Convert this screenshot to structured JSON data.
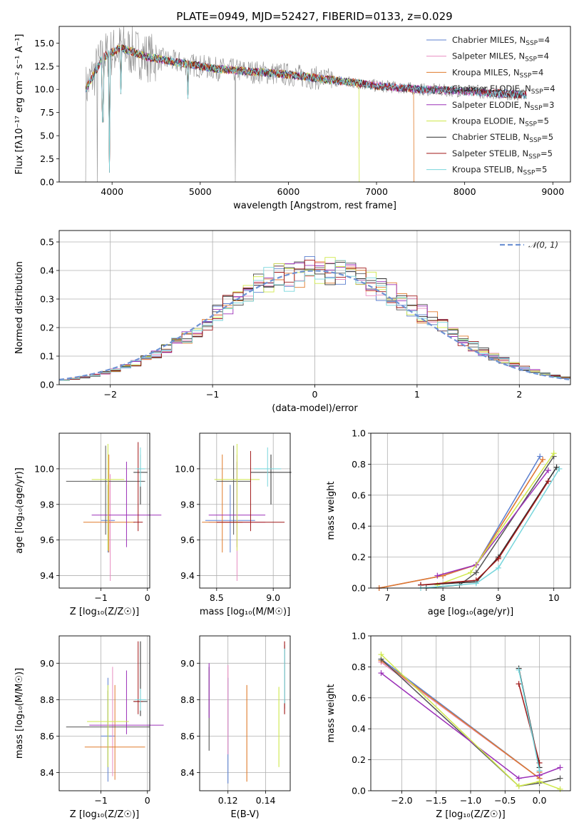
{
  "palette": [
    "#5b7fcf",
    "#e88cc0",
    "#e07b2c",
    "#555555",
    "#9b30b8",
    "#cfe84a",
    "#2f2f2f",
    "#a01818",
    "#78d6dc"
  ],
  "chart_data": [
    {
      "id": "spectrum",
      "type": "line",
      "title": "PLATE=0949, MJD=52427, FIBERID=0133, z=0.029",
      "xlabel": "wavelength [Angstrom, rest frame]",
      "ylabel": "Flux [fλ10⁻¹⁷ erg cm⁻² s⁻¹ A⁻¹]",
      "xlim": [
        3400,
        9200
      ],
      "ylim": [
        0,
        16.8
      ],
      "xticks": [
        4000,
        5000,
        6000,
        7000,
        8000,
        9000
      ],
      "yticks": [
        0.0,
        2.5,
        5.0,
        7.5,
        10.0,
        12.5,
        15.0
      ],
      "ytick_labels": [
        "0.0",
        "2.5",
        "5.0",
        "7.5",
        "10.0",
        "12.5",
        "15.0"
      ],
      "grid": false,
      "legend": "top-right",
      "legend_entries": [
        {
          "label": "Chabrier MILES, N",
          "sub": "SSP",
          "tail": "=4"
        },
        {
          "label": "Salpeter MILES, N",
          "sub": "SSP",
          "tail": "=4"
        },
        {
          "label": "Kroupa MILES, N",
          "sub": "SSP",
          "tail": "=4"
        },
        {
          "label": "Chabrier ELODIE, N",
          "sub": "SSP",
          "tail": "=4"
        },
        {
          "label": "Salpeter ELODIE, N",
          "sub": "SSP",
          "tail": "=3"
        },
        {
          "label": "Kroupa ELODIE, N",
          "sub": "SSP",
          "tail": "=5"
        },
        {
          "label": "Chabrier STELIB, N",
          "sub": "SSP",
          "tail": "=5"
        },
        {
          "label": "Salpeter STELIB, N",
          "sub": "SSP",
          "tail": "=5"
        },
        {
          "label": "Kroupa STELIB, N",
          "sub": "SSP",
          "tail": "=5"
        }
      ],
      "continuum": {
        "x": [
          3700,
          3900,
          4100,
          4400,
          4800,
          5200,
          5600,
          6000,
          6500,
          7000,
          7500,
          8000,
          8500,
          9000
        ],
        "y": [
          10.0,
          13.5,
          14.5,
          13.5,
          12.8,
          12.2,
          11.9,
          11.6,
          11.0,
          10.4,
          10.0,
          9.8,
          9.5,
          9.3
        ]
      }
    },
    {
      "id": "residuals",
      "type": "bar",
      "xlabel": "(data-model)/error",
      "ylabel": "Normed distribution",
      "xlim": [
        -2.5,
        2.5
      ],
      "ylim": [
        0,
        0.54
      ],
      "xticks": [
        -2,
        -1,
        0,
        1,
        2
      ],
      "xtick_labels": [
        "−2",
        "−1",
        "0",
        "1",
        "2"
      ],
      "yticks": [
        0.0,
        0.1,
        0.2,
        0.3,
        0.4,
        0.5
      ],
      "ytick_labels": [
        "0.0",
        "0.1",
        "0.2",
        "0.3",
        "0.4",
        "0.5"
      ],
      "grid": true,
      "legend": "top-right",
      "normal_label": "𝒩(0, 1)"
    },
    {
      "id": "age-vs-Z",
      "type": "scatter",
      "xlabel": "Z [log₁₀(Z/Z☉)]",
      "ylabel": "age  [log₁₀(age/yr)]",
      "xlim": [
        -1.9,
        0.05
      ],
      "ylim": [
        9.33,
        10.2
      ],
      "xticks": [
        -1,
        0
      ],
      "xtick_labels": [
        "−1",
        "0"
      ],
      "yticks": [
        9.4,
        9.6,
        9.8,
        10.0
      ],
      "ytick_labels": [
        "9.4",
        "9.6",
        "9.8",
        "10.0"
      ],
      "grid": true,
      "points": [
        {
          "x": -0.85,
          "y": 9.71,
          "xerr": 0.15,
          "yerr": [
            0.18,
            0.2
          ]
        },
        {
          "x": -0.8,
          "y": 9.7,
          "xerr": 0.08,
          "yerr": [
            0.33,
            0.27
          ]
        },
        {
          "x": -0.83,
          "y": 9.7,
          "xerr": 0.55,
          "yerr": [
            0.17,
            0.38
          ]
        },
        {
          "x": -0.9,
          "y": 9.93,
          "xerr": 0.85,
          "yerr": [
            0.3,
            0.2
          ]
        },
        {
          "x": -0.45,
          "y": 9.74,
          "xerr": 0.75,
          "yerr": [
            0.18,
            0.3
          ]
        },
        {
          "x": -0.85,
          "y": 9.94,
          "xerr": 0.35,
          "yerr": [
            0.4,
            0.2
          ]
        },
        {
          "x": -0.15,
          "y": 9.98,
          "xerr": 0.15,
          "yerr": [
            0.18,
            0.1
          ]
        },
        {
          "x": -0.2,
          "y": 9.7,
          "xerr": 0.1,
          "yerr": [
            0.05,
            0.45
          ]
        },
        {
          "x": -0.15,
          "y": 10.0,
          "xerr": 0.1,
          "yerr": [
            0.1,
            0.12
          ]
        }
      ]
    },
    {
      "id": "age-vs-mass",
      "type": "scatter",
      "xlabel": "mass [log₁₀(M/M☉)]",
      "ylabel": "",
      "xlim": [
        8.35,
        9.15
      ],
      "ylim": [
        9.33,
        10.2
      ],
      "xticks": [
        8.5,
        9.0
      ],
      "xtick_labels": [
        "8.5",
        "9.0"
      ],
      "yticks": [
        9.4,
        9.6,
        9.8,
        10.0
      ],
      "ytick_labels": [
        "9.4",
        "9.6",
        "9.8",
        "10.0"
      ],
      "grid": true,
      "points": [
        {
          "x": 8.62,
          "y": 9.71,
          "xerr": 0.22,
          "yerr": [
            0.18,
            0.2
          ]
        },
        {
          "x": 8.68,
          "y": 9.7,
          "xerr": 0.25,
          "yerr": [
            0.33,
            0.38
          ]
        },
        {
          "x": 8.55,
          "y": 9.7,
          "xerr": 0.18,
          "yerr": [
            0.17,
            0.38
          ]
        },
        {
          "x": 8.65,
          "y": 9.93,
          "xerr": 0.15,
          "yerr": [
            0.3,
            0.2
          ]
        },
        {
          "x": 8.68,
          "y": 9.74,
          "xerr": 0.25,
          "yerr": [
            0.18,
            0.3
          ]
        },
        {
          "x": 8.68,
          "y": 9.94,
          "xerr": 0.2,
          "yerr": [
            0.4,
            0.2
          ]
        },
        {
          "x": 8.98,
          "y": 9.98,
          "xerr": 0.18,
          "yerr": [
            0.18,
            0.1
          ]
        },
        {
          "x": 8.8,
          "y": 9.7,
          "xerr": 0.3,
          "yerr": [
            0.05,
            0.4
          ]
        },
        {
          "x": 8.95,
          "y": 10.0,
          "xerr": 0.12,
          "yerr": [
            0.1,
            0.12
          ]
        }
      ]
    },
    {
      "id": "mass-weight-vs-age",
      "type": "line",
      "xlabel": "age  [log₁₀(age/yr)]",
      "ylabel": "mass weight",
      "xlim": [
        6.7,
        10.3
      ],
      "ylim": [
        0,
        1.0
      ],
      "xticks": [
        7,
        8,
        9,
        10
      ],
      "xtick_labels": [
        "7",
        "8",
        "9",
        "10"
      ],
      "yticks": [
        0.0,
        0.2,
        0.4,
        0.6,
        0.8,
        1.0
      ],
      "ytick_labels": [
        "0.0",
        "0.2",
        "0.4",
        "0.6",
        "0.8",
        "1.0"
      ],
      "grid": true,
      "series": [
        {
          "x": [
            6.85,
            8.0,
            8.6,
            9.75
          ],
          "y": [
            0.0,
            0.08,
            0.15,
            0.85
          ]
        },
        {
          "x": [
            6.85,
            8.0,
            8.6,
            9.8
          ],
          "y": [
            0.0,
            0.08,
            0.15,
            0.83
          ]
        },
        {
          "x": [
            6.85,
            8.0,
            8.6,
            9.8
          ],
          "y": [
            0.0,
            0.08,
            0.15,
            0.83
          ]
        },
        {
          "x": [
            7.7,
            8.3,
            8.6,
            10.0
          ],
          "y": [
            0.0,
            0.02,
            0.1,
            0.85
          ]
        },
        {
          "x": [
            7.9,
            8.6,
            9.9
          ],
          "y": [
            0.08,
            0.15,
            0.76
          ]
        },
        {
          "x": [
            7.9,
            8.5,
            10.0
          ],
          "y": [
            0.02,
            0.1,
            0.87
          ]
        },
        {
          "x": [
            7.6,
            8.6,
            9.0,
            10.05
          ],
          "y": [
            0.02,
            0.04,
            0.2,
            0.78
          ]
        },
        {
          "x": [
            7.6,
            8.6,
            9.0,
            9.9
          ],
          "y": [
            0.02,
            0.05,
            0.19,
            0.69
          ]
        },
        {
          "x": [
            7.6,
            8.6,
            9.0,
            10.1
          ],
          "y": [
            0.0,
            0.03,
            0.13,
            0.77
          ]
        }
      ]
    },
    {
      "id": "mass-vs-Z",
      "type": "scatter",
      "xlabel": "Z [log₁₀(Z/Z☉)]",
      "ylabel": "mass [log₁₀(M/M☉)]",
      "xlim": [
        -1.9,
        0.05
      ],
      "ylim": [
        8.3,
        9.15
      ],
      "xticks": [
        -1,
        0
      ],
      "xtick_labels": [
        "−1",
        "0"
      ],
      "yticks": [
        8.4,
        8.6,
        8.8,
        9.0
      ],
      "ytick_labels": [
        "8.4",
        "8.6",
        "8.8",
        "9.0"
      ],
      "grid": true,
      "points": [
        {
          "x": -0.85,
          "y": 8.6,
          "xerr": 0.15,
          "yerr": [
            0.25,
            0.32
          ]
        },
        {
          "x": -0.75,
          "y": 8.68,
          "xerr": 0.1,
          "yerr": [
            0.3,
            0.3
          ]
        },
        {
          "x": -0.7,
          "y": 8.54,
          "xerr": 0.65,
          "yerr": [
            0.18,
            0.34
          ]
        },
        {
          "x": -0.85,
          "y": 8.65,
          "xerr": 0.9,
          "yerr": [
            0.22,
            0.2
          ]
        },
        {
          "x": -0.45,
          "y": 8.66,
          "xerr": 0.8,
          "yerr": [
            0.05,
            0.3
          ]
        },
        {
          "x": -0.85,
          "y": 8.68,
          "xerr": 0.45,
          "yerr": [
            0.25,
            0.2
          ]
        },
        {
          "x": -0.15,
          "y": 8.79,
          "xerr": 0.15,
          "yerr": [
            0.08,
            0.33
          ]
        },
        {
          "x": -0.2,
          "y": 8.79,
          "xerr": 0.1,
          "yerr": [
            0.07,
            0.33
          ]
        },
        {
          "x": -0.15,
          "y": 8.8,
          "xerr": 0.12,
          "yerr": [
            0.06,
            0.06
          ]
        }
      ]
    },
    {
      "id": "mass-vs-EBV",
      "type": "scatter",
      "xlabel": "E(B-V)",
      "ylabel": "",
      "xlim": [
        0.105,
        0.153
      ],
      "ylim": [
        8.3,
        9.15
      ],
      "xticks": [
        0.12,
        0.14
      ],
      "xtick_labels": [
        "0.12",
        "0.14"
      ],
      "yticks": [
        8.4,
        8.6,
        8.8,
        9.0
      ],
      "ytick_labels": [
        "8.4",
        "8.6",
        "8.8",
        "9.0"
      ],
      "grid": true,
      "segments": [
        {
          "x": 0.12,
          "y0": 8.34,
          "y1": 8.92,
          "c": 0
        },
        {
          "x": 0.12,
          "y0": 8.5,
          "y1": 8.99,
          "c": 1
        },
        {
          "x": 0.13,
          "y0": 8.35,
          "y1": 8.88,
          "c": 2
        },
        {
          "x": 0.11,
          "y0": 8.52,
          "y1": 8.98,
          "c": 3
        },
        {
          "x": 0.11,
          "y0": 8.7,
          "y1": 9.0,
          "c": 4
        },
        {
          "x": 0.147,
          "y0": 8.43,
          "y1": 8.87,
          "c": 5
        },
        {
          "x": 0.15,
          "y0": 8.75,
          "y1": 9.1,
          "c": 6
        },
        {
          "x": 0.15,
          "y0": 8.72,
          "y1": 9.12,
          "c": 7
        },
        {
          "x": 0.15,
          "y0": 8.78,
          "y1": 9.08,
          "c": 8
        }
      ]
    },
    {
      "id": "mass-weight-vs-Z",
      "type": "line",
      "xlabel": "Z [log₁₀(Z/Z☉)]",
      "ylabel": "mass weight",
      "xlim": [
        -2.45,
        0.45
      ],
      "ylim": [
        0,
        1.0
      ],
      "xticks": [
        -2.0,
        -1.5,
        -1.0,
        -0.5,
        0.0
      ],
      "xtick_labels": [
        "−2.0",
        "−1.5",
        "−1.0",
        "−0.5",
        "0.0"
      ],
      "yticks": [
        0.0,
        0.2,
        0.4,
        0.6,
        0.8,
        1.0
      ],
      "ytick_labels": [
        "0.0",
        "0.2",
        "0.4",
        "0.6",
        "0.8",
        "1.0"
      ],
      "grid": true,
      "series": [
        {
          "x": [
            -2.3,
            0.0,
            0.0
          ],
          "y": [
            0.85,
            0.08,
            0.12
          ]
        },
        {
          "x": [
            -2.3,
            0.0,
            0.0
          ],
          "y": [
            0.83,
            0.08,
            0.12
          ]
        },
        {
          "x": [
            -2.3,
            0.0,
            0.0
          ],
          "y": [
            0.84,
            0.08,
            0.12
          ]
        },
        {
          "x": [
            -2.3,
            -0.3,
            0.0,
            0.3
          ],
          "y": [
            0.85,
            0.03,
            0.05,
            0.08
          ]
        },
        {
          "x": [
            -2.3,
            -0.3,
            0.0,
            0.3
          ],
          "y": [
            0.76,
            0.08,
            0.1,
            0.15
          ]
        },
        {
          "x": [
            -2.3,
            -0.3,
            0.0,
            0.3
          ],
          "y": [
            0.88,
            0.03,
            0.06,
            0.01
          ]
        },
        {
          "x": [
            -0.3,
            0.0
          ],
          "y": [
            0.79,
            0.15
          ]
        },
        {
          "x": [
            -0.3,
            0.0
          ],
          "y": [
            0.69,
            0.18
          ]
        },
        {
          "x": [
            -0.3,
            0.0
          ],
          "y": [
            0.78,
            0.13
          ]
        }
      ]
    }
  ]
}
